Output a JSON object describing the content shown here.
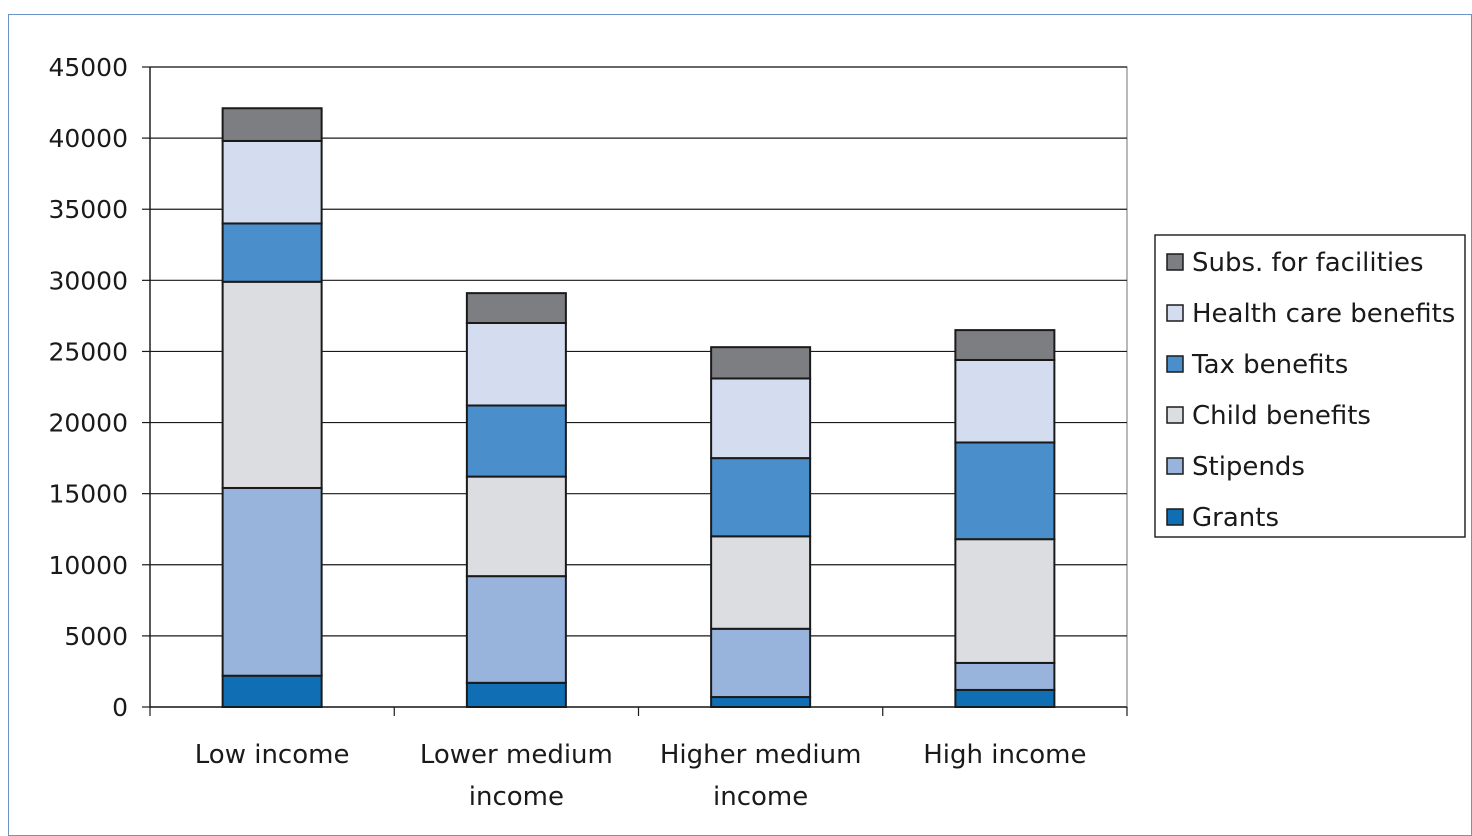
{
  "chart_data": {
    "type": "bar",
    "stacked": true,
    "title": "",
    "xlabel": "",
    "ylabel": "",
    "ylim": [
      0,
      45000
    ],
    "yticks": [
      0,
      5000,
      10000,
      15000,
      20000,
      25000,
      30000,
      35000,
      40000,
      45000
    ],
    "grid": "horizontal",
    "legend_position": "right",
    "categories": [
      [
        "Low income"
      ],
      [
        "Lower medium",
        "income"
      ],
      [
        "Higher medium",
        "income"
      ],
      [
        "High income"
      ]
    ],
    "series": [
      {
        "name": "Grants",
        "color": "#0f6eb4",
        "values": [
          2200,
          1700,
          700,
          1200
        ]
      },
      {
        "name": "Stipends",
        "color": "#98b4dc",
        "values": [
          13200,
          7500,
          4800,
          1900
        ]
      },
      {
        "name": "Child benefits",
        "color": "#dcdde0",
        "values": [
          14500,
          7000,
          6500,
          8700
        ]
      },
      {
        "name": "Tax benefits",
        "color": "#4a8ecb",
        "values": [
          4100,
          5000,
          5500,
          6800
        ]
      },
      {
        "name": "Health care benefits",
        "color": "#d4ddef",
        "values": [
          5800,
          5800,
          5600,
          5800
        ]
      },
      {
        "name": "Subs. for facilities",
        "color": "#7d7e81",
        "values": [
          2300,
          2100,
          2200,
          2100
        ]
      }
    ]
  }
}
